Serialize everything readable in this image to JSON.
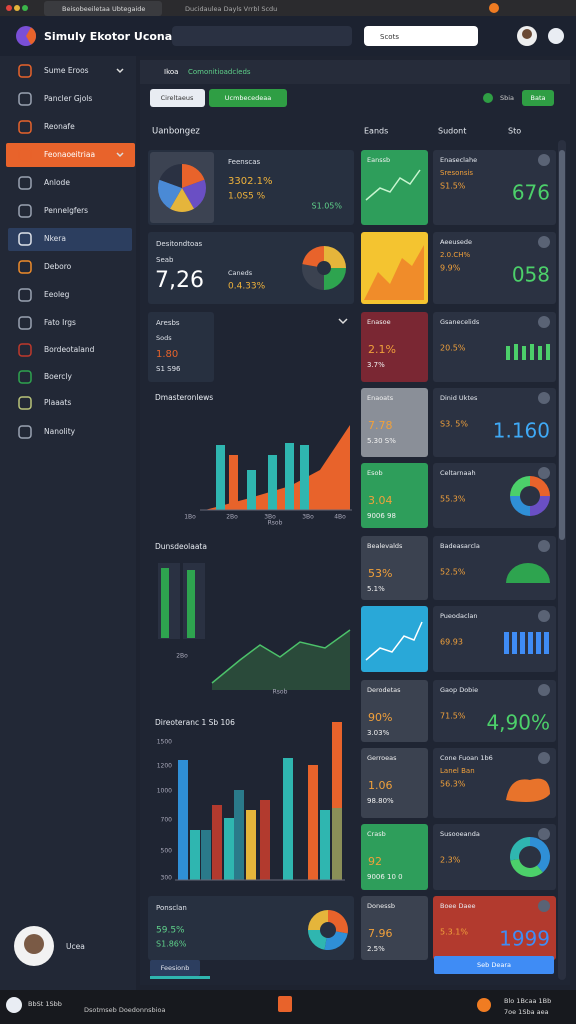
{
  "browser": {
    "tabs": [
      "Beisobeeiletaa Ubtegaide",
      "Ducidaulea Dayls Vrrbl Scdu"
    ]
  },
  "header": {
    "title": "Simuly Ekotor Ucona",
    "search": "Scots"
  },
  "sidebar": {
    "items": [
      "Sume Eroos",
      "Pancler Gjols",
      "Reonafe",
      "Feonaoeitriaa",
      "Anlode",
      "Pennelgfers",
      "Nkera",
      "Deboro",
      "Eeoleg",
      "Fato Irgs",
      "Bordeotaland",
      "Boercly",
      "Plaaats",
      "Nanolity"
    ],
    "user": "Ucea"
  },
  "breadcrumb": {
    "home": "Ikoa",
    "path": "Comonitioadcleds"
  },
  "toolbar": {
    "tabs": [
      "Cireltaeus",
      "Ucmbecedeaa"
    ],
    "status": "Sbia",
    "action": "Bata"
  },
  "columns": {
    "left": "Uanbongez",
    "middle": "Eands",
    "right": "Sudont",
    "sort": "Sto"
  },
  "left": {
    "summary": {
      "label": "Feenscas",
      "v1": "3302.1%",
      "v2": "1.0S5 %",
      "v3": "S1.05%"
    },
    "desk": {
      "label": "Desitondtoas",
      "sub": "Seab",
      "value": "7,26",
      "label2": "Caneds",
      "change": "0.4.33%"
    },
    "small": {
      "label": "Aresbs",
      "sub": "Sods",
      "value": "1.80",
      "change": "S1 S96"
    },
    "chart1": {
      "title": "Dmasteronlews",
      "xlabels": [
        "1Bo",
        "2Bo",
        "3Bo",
        "3Bo",
        "4Bo"
      ],
      "xtitle": "Rsob"
    },
    "chart2": {
      "title": "Dunsdeolaata",
      "label": "2Bo",
      "xtitle": "Rsob"
    },
    "chart3": {
      "title": "Direoteranc 1 Sb 106",
      "ylabels": [
        "1500",
        "1200",
        "1000",
        "700",
        "500",
        "300"
      ]
    },
    "bottom": {
      "label": "Ponsclan",
      "v1": "59.5%",
      "v2": "S1.86%",
      "button": "Feesionb"
    }
  },
  "middle": [
    {
      "label": "Eanssb"
    },
    {
      "label": "Enasoe",
      "value": "2.1%",
      "sub": "3.7%"
    },
    {
      "label": "Enaoats",
      "value": "7.78",
      "sub": "5.30 S%"
    },
    {
      "label": "Esob",
      "value": "3.04",
      "sub": "9006 98"
    },
    {
      "label": "Bealevalds",
      "value": "53%",
      "sub": "5.1%"
    },
    {
      "label": "Derodetas",
      "value": "90%",
      "sub": "3.03%"
    },
    {
      "label": "Gerroeas",
      "value": "1.06",
      "sub": "98.80%"
    },
    {
      "label": "Crasb",
      "value": "92",
      "sub": "9006 10 0"
    },
    {
      "label": "Donessb",
      "value": "7.96",
      "sub": "2.5%"
    }
  ],
  "right": {
    "cards": [
      {
        "label": "Enaseclahe",
        "sub": "Sresonsis",
        "value": "S1.5%",
        "big": "676"
      },
      {
        "label": "Aeeusede",
        "sub": "2.0.CH%",
        "value": "9.9%",
        "big": "058"
      },
      {
        "label": "Gsanecelids",
        "value": "20.5%"
      },
      {
        "label": "Dinid Uktes",
        "value": "S3. 5%",
        "big": "1.160"
      },
      {
        "label": "Celtarnaah",
        "value": "55.3%"
      },
      {
        "label": "Badeasarcla",
        "value": "52.5%"
      },
      {
        "label": "Pueodaclan",
        "value": "69.93"
      },
      {
        "label": "Gaop Dobie",
        "value": "71.5%",
        "big": "4,90%"
      },
      {
        "label": "Cone Fuoan 1b6",
        "sub": "Lanel Ban",
        "value": "56.3%"
      },
      {
        "label": "Susooeanda",
        "value": "2.3%"
      },
      {
        "label": "Boee Daee",
        "value": "5.3.1%",
        "big": "1999"
      }
    ],
    "button": "Seb Deara"
  },
  "taskbar": {
    "left": "BbSt 1Sbb",
    "app": "Dsotmseb Doedonnsbioa",
    "right": "Blo 1Bcaa 1Bb",
    "date": "7oe 1Sba aea"
  }
}
